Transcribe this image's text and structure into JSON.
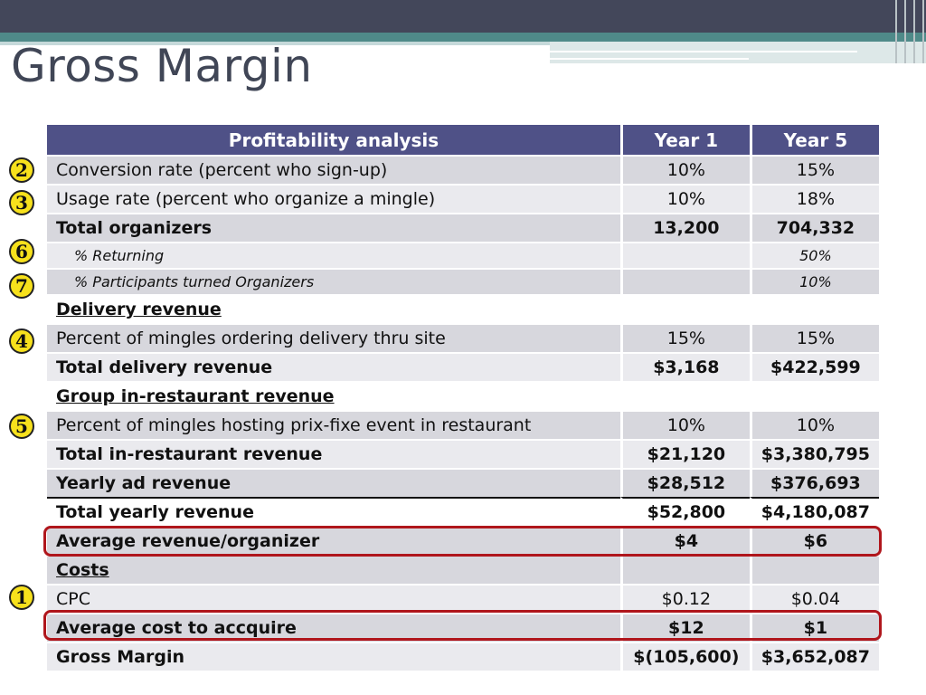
{
  "slide": {
    "title": "Gross Margin"
  },
  "table": {
    "headers": [
      "Profitability analysis",
      "Year 1",
      "Year 5"
    ],
    "rows": [
      {
        "label": "Conversion rate (percent who sign-up)",
        "y1": "10%",
        "y5": "15%"
      },
      {
        "label": "Usage rate (percent who organize a mingle)",
        "y1": "10%",
        "y5": "18%"
      },
      {
        "label": "Total organizers",
        "y1": "13,200",
        "y5": "704,332"
      },
      {
        "label": "% Returning",
        "y1": "",
        "y5": "50%"
      },
      {
        "label": "% Participants turned Organizers",
        "y1": "",
        "y5": "10%"
      },
      {
        "label": "Delivery revenue",
        "y1": "",
        "y5": ""
      },
      {
        "label": "Percent of mingles ordering delivery thru site",
        "y1": "15%",
        "y5": "15%"
      },
      {
        "label": "Total delivery revenue",
        "y1": "$3,168",
        "y5": "$422,599"
      },
      {
        "label": "Group in-restaurant revenue",
        "y1": "",
        "y5": ""
      },
      {
        "label": "Percent of mingles hosting prix-fixe event in restaurant",
        "y1": "10%",
        "y5": "10%"
      },
      {
        "label": "Total in-restaurant revenue",
        "y1": "$21,120",
        "y5": "$3,380,795"
      },
      {
        "label": "Yearly ad revenue",
        "y1": "$28,512",
        "y5": "$376,693"
      },
      {
        "label": "Total yearly revenue",
        "y1": "$52,800",
        "y5": "$4,180,087"
      },
      {
        "label": "Average revenue/organizer",
        "y1": "$4",
        "y5": "$6"
      },
      {
        "label": "Costs",
        "y1": "",
        "y5": ""
      },
      {
        "label": "CPC",
        "y1": "$0.12",
        "y5": "$0.04"
      },
      {
        "label": "Average cost to accquire",
        "y1": "$12",
        "y5": "$1"
      },
      {
        "label": "Gross Margin",
        "y1": "$(105,600)",
        "y5": "$3,652,087"
      }
    ]
  },
  "badges": [
    "2",
    "3",
    "6",
    "7",
    "4",
    "5",
    "1"
  ],
  "colors": {
    "header_bg": "#4f5187",
    "highlight": "#b0161c",
    "badge": "#f7e11c"
  }
}
